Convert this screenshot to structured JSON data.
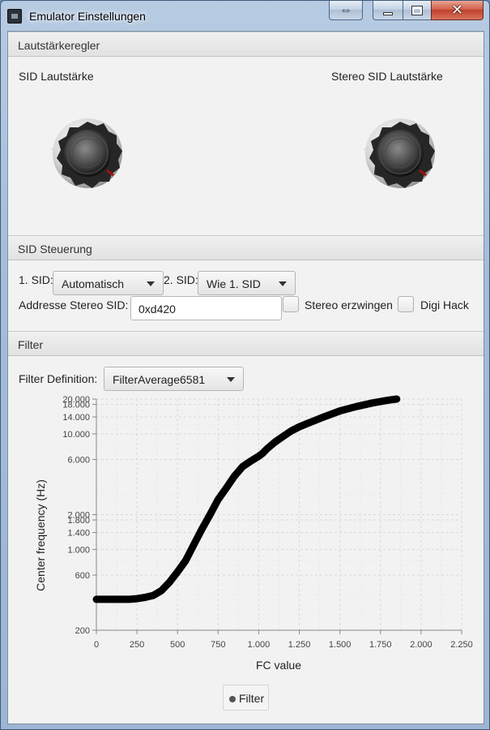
{
  "window": {
    "title": "Emulator Einstellungen"
  },
  "volume": {
    "header": "Lautstärkeregler",
    "sid_label": "SID Lautstärke",
    "stereo_label": "Stereo SID Lautstärke"
  },
  "sid_control": {
    "header": "SID Steuerung",
    "sid1_label": "1. SID:",
    "sid1_value": "Automatisch",
    "sid2_label": "2. SID:",
    "sid2_value": "Wie 1. SID",
    "address_label": "Addresse Stereo SID:",
    "address_value": "0xd420",
    "force_stereo_label": "Stereo erzwingen",
    "digi_hack_label": "Digi Hack"
  },
  "filter": {
    "header": "Filter",
    "definition_label": "Filter Definition:",
    "definition_value": "FilterAverage6581"
  },
  "chart_data": {
    "type": "line",
    "xlabel": "FC value",
    "ylabel": "Center frequency (Hz)",
    "xlim": [
      0,
      2250
    ],
    "ylim": [
      200,
      20000
    ],
    "yscale": "log",
    "grid": true,
    "legend": "bottom-center",
    "x_ticks": [
      "0",
      "250",
      "500",
      "750",
      "1.000",
      "1.250",
      "1.500",
      "1.750",
      "2.000",
      "2.250"
    ],
    "y_ticks": [
      {
        "value": 200,
        "label": "200"
      },
      {
        "value": 600,
        "label": "600"
      },
      {
        "value": 1000,
        "label": "1.000"
      },
      {
        "value": 1400,
        "label": "1.400"
      },
      {
        "value": 1800,
        "label": "1.800"
      },
      {
        "value": 2000,
        "label": "2.000"
      },
      {
        "value": 6000,
        "label": "6.000"
      },
      {
        "value": 10000,
        "label": "10.000"
      },
      {
        "value": 14000,
        "label": "14.000"
      },
      {
        "value": 18000,
        "label": "18.000"
      },
      {
        "value": 20000,
        "label": "20.000"
      }
    ],
    "series": [
      {
        "name": "Filter",
        "color": "#000000",
        "x": [
          0,
          100,
          200,
          250,
          300,
          350,
          400,
          450,
          500,
          550,
          600,
          650,
          700,
          750,
          800,
          850,
          900,
          950,
          1000,
          1024,
          1050,
          1100,
          1150,
          1200,
          1250,
          1300,
          1400,
          1500,
          1600,
          1700,
          1800,
          1850
        ],
        "y": [
          370,
          370,
          370,
          375,
          385,
          400,
          440,
          520,
          640,
          800,
          1100,
          1500,
          2000,
          2700,
          3400,
          4300,
          5200,
          5800,
          6400,
          6800,
          7400,
          8500,
          9500,
          10600,
          11500,
          12300,
          14000,
          15800,
          17200,
          18500,
          19600,
          20000
        ]
      }
    ]
  }
}
